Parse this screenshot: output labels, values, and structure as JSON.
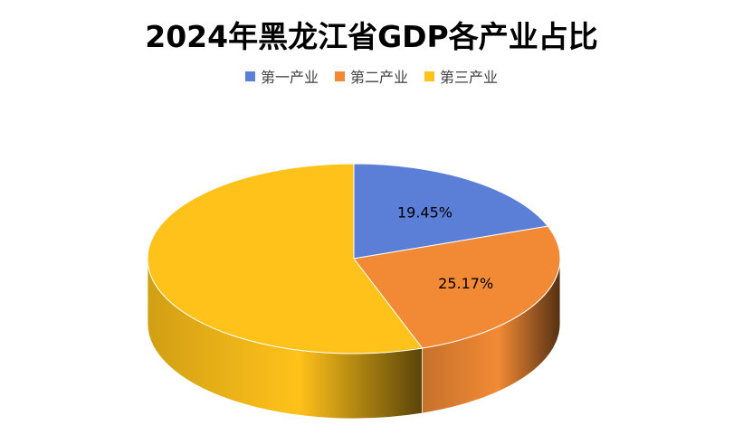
{
  "chart_data": {
    "type": "pie",
    "title": "2024年黑龙江省GDP各产业占比",
    "categories": [
      "第一产业",
      "第二产业",
      "第三产业"
    ],
    "values": [
      19.45,
      25.17,
      55.38
    ],
    "data_labels": [
      "19.45%",
      "25.17%",
      ""
    ],
    "colors": [
      "#5B7FD6",
      "#F28A35",
      "#FFC21A"
    ],
    "legend_position": "top",
    "style": "3d"
  }
}
